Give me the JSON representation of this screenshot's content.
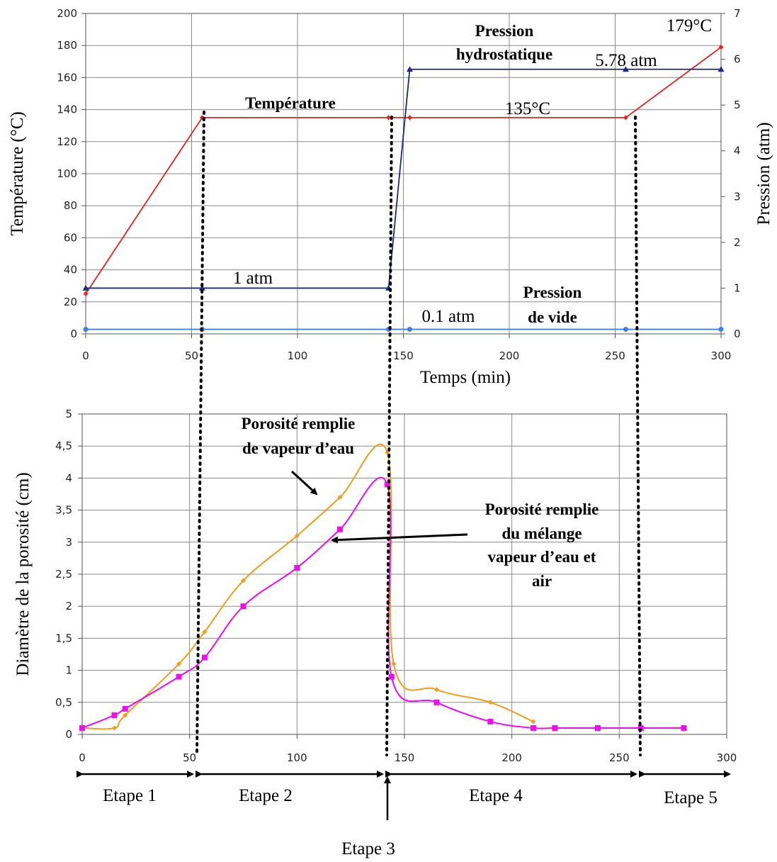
{
  "chart_data": [
    {
      "type": "line",
      "xlabel": "Temps (min)",
      "ylabel": "Température (°C)",
      "y2label": "Pression (atm)",
      "xlim": [
        0,
        300
      ],
      "ylim": [
        0,
        200
      ],
      "y2lim": [
        0,
        7
      ],
      "x_ticks": [
        0,
        50,
        100,
        150,
        200,
        250,
        300
      ],
      "y_ticks": [
        0,
        20,
        40,
        60,
        80,
        100,
        120,
        140,
        160,
        180,
        200
      ],
      "y2_ticks": [
        0,
        1,
        2,
        3,
        4,
        5,
        6,
        7
      ],
      "grid": true,
      "series": [
        {
          "name": "Température",
          "axis": "left",
          "color": "#e8211c",
          "marker": "diamond",
          "x": [
            0,
            55,
            143,
            153,
            255,
            300
          ],
          "y": [
            25,
            135,
            135,
            135,
            135,
            179
          ]
        },
        {
          "name": "Pression hydrostatique",
          "axis": "right",
          "color": "#1f2a7a",
          "marker": "triangle",
          "x": [
            0,
            55,
            143,
            153,
            255,
            300
          ],
          "y": [
            1,
            1,
            1,
            5.78,
            5.78,
            5.78
          ]
        },
        {
          "name": "Pression de vide",
          "axis": "right",
          "color": "#3b7fe6",
          "marker": "circle",
          "x": [
            0,
            55,
            143,
            153,
            255,
            300
          ],
          "y": [
            0.1,
            0.1,
            0.1,
            0.1,
            0.1,
            0.1
          ]
        }
      ],
      "annotations": {
        "temp_label": "Température",
        "hydro_label_1": "Pression",
        "hydro_label_2": "hydrostatique",
        "vide_label_1": "Pression",
        "vide_label_2": "de vide",
        "one_atm": "1 atm",
        "p01_atm": "0.1 atm",
        "p578_atm": "5.78 atm",
        "t135": "135°C",
        "t179": "179°C"
      }
    },
    {
      "type": "line",
      "ylabel": "Diamètre de la porosité (cm)",
      "xlim": [
        0,
        300
      ],
      "ylim": [
        0,
        5
      ],
      "x_ticks": [
        0,
        50,
        100,
        150,
        200,
        250,
        300
      ],
      "y_ticks": [
        "0",
        "0,5",
        "1",
        "1,5",
        "2",
        "2,5",
        "3",
        "3,5",
        "4",
        "4,5",
        "5"
      ],
      "grid": true,
      "series": [
        {
          "name": "Porosité remplie de vapeur d’eau",
          "color": "#f39c1b",
          "marker": "diamond",
          "x": [
            0,
            15,
            20,
            45,
            57,
            75,
            100,
            120,
            142,
            145,
            165,
            190,
            210
          ],
          "y": [
            0.1,
            0.1,
            0.3,
            1.1,
            1.6,
            2.4,
            3.1,
            3.7,
            4.4,
            1.1,
            0.7,
            0.5,
            0.2
          ]
        },
        {
          "name": "Porosité remplie du mélange vapeur d’eau et air",
          "color": "#f00cf0",
          "marker": "square",
          "x": [
            0,
            15,
            20,
            45,
            57,
            75,
            100,
            120,
            142,
            144,
            165,
            190,
            210,
            220,
            240,
            260,
            280
          ],
          "y": [
            0.1,
            0.3,
            0.4,
            0.9,
            1.2,
            2.0,
            2.6,
            3.2,
            3.9,
            0.9,
            0.5,
            0.2,
            0.1,
            0.1,
            0.1,
            0.1,
            0.1
          ]
        }
      ],
      "annotations": {
        "vapeur_1": "Porosité remplie",
        "vapeur_2": "de vapeur d’eau",
        "melange_1": "Porosité remplie",
        "melange_2": "du mélange",
        "melange_3": "vapeur d’eau et",
        "melange_4": "air"
      },
      "stages": [
        "Etape 1",
        "Etape 2",
        "Etape 3",
        "Etape 4",
        "Etape 5"
      ]
    }
  ]
}
